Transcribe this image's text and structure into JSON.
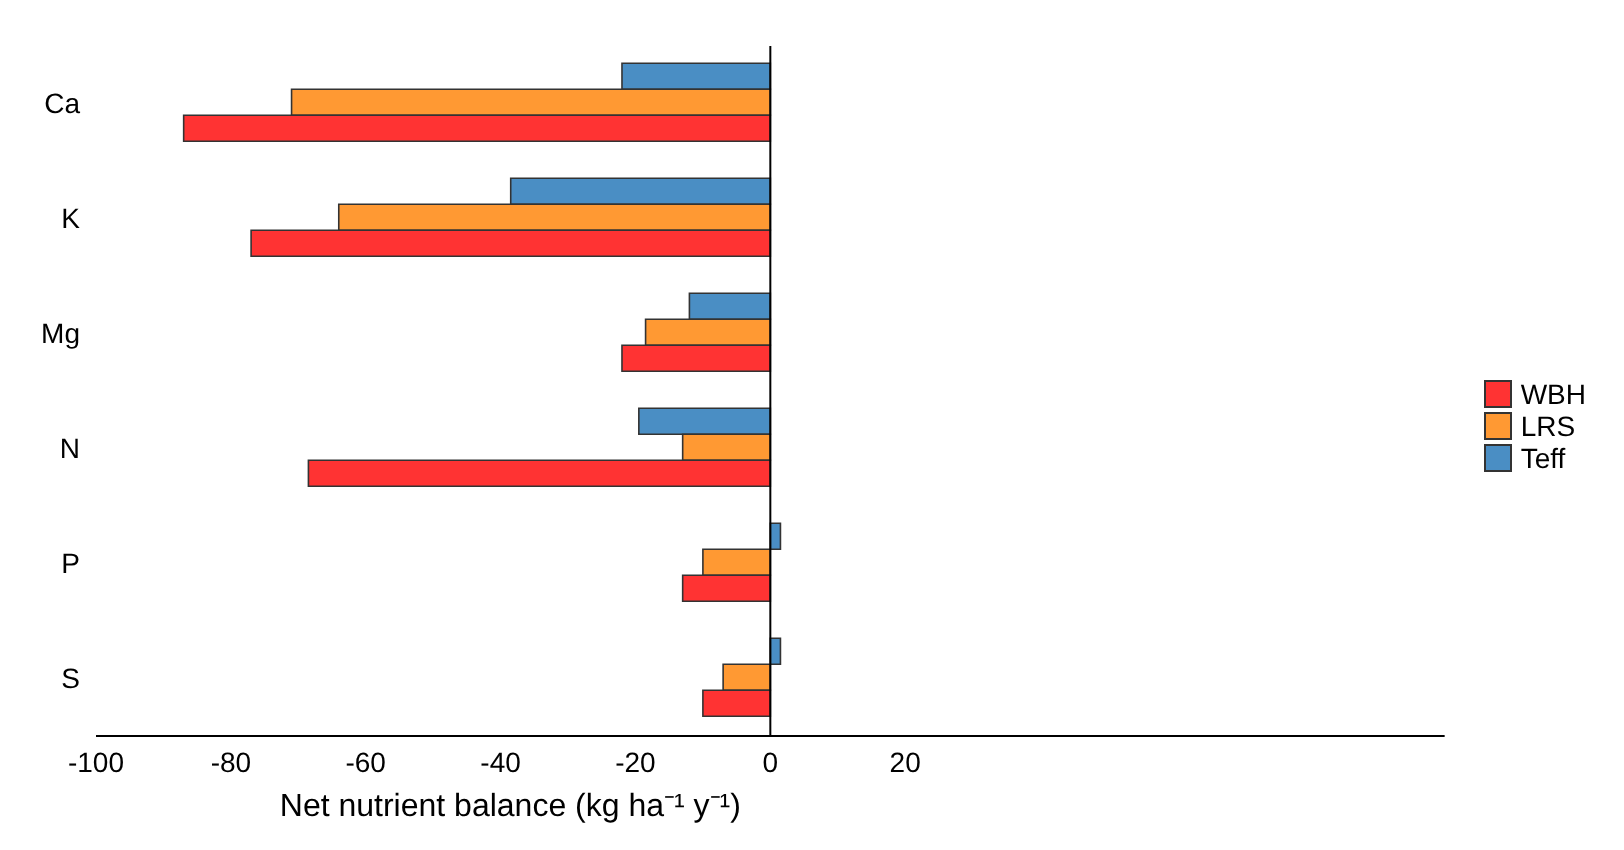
{
  "chart_data": {
    "type": "bar",
    "orientation": "horizontal",
    "xlabel": "Net nutrient balance (kg ha⁻¹ y⁻¹)",
    "categories": [
      "Ca",
      "K",
      "Mg",
      "N",
      "P",
      "S"
    ],
    "series": [
      {
        "name": "WBH",
        "color": "#ff3333",
        "values": [
          -87,
          -77,
          -22,
          -68.5,
          -13,
          -10
        ]
      },
      {
        "name": "LRS",
        "color": "#ff9933",
        "values": [
          -71,
          -64,
          -18.5,
          -13,
          -10,
          -7
        ]
      },
      {
        "name": "Teff",
        "color": "#4a8ec4",
        "values": [
          -22,
          -38.5,
          -12,
          -19.5,
          1.5,
          1.5
        ]
      }
    ],
    "xlim": [
      -100,
      100
    ],
    "xticks": [
      -100,
      -80,
      -60,
      -40,
      -20,
      0,
      20
    ],
    "ref_lines": [
      {
        "axis": "x",
        "value": 0,
        "color": "#000000"
      }
    ],
    "legend": "right",
    "grid": false
  }
}
